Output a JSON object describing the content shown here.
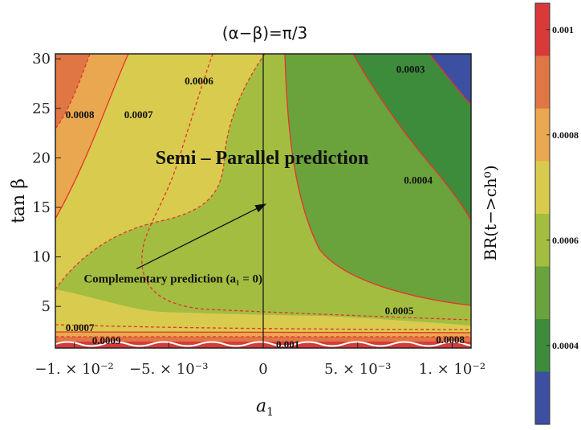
{
  "chart_data": {
    "type": "contour",
    "title": "(α−β)=π/3",
    "xlabel": "a1",
    "ylabel": "tan β",
    "xlim": [
      -0.011,
      0.011
    ],
    "ylim": [
      0.8,
      30.5
    ],
    "x_ticks": [
      {
        "value": -0.01,
        "label": "−1. × 10⁻²"
      },
      {
        "value": -0.005,
        "label": "−5. × 10⁻³"
      },
      {
        "value": 0,
        "label": "0"
      },
      {
        "value": 0.005,
        "label": "5. × 10⁻³"
      },
      {
        "value": 0.01,
        "label": "1. × 10⁻²"
      }
    ],
    "y_ticks": [
      {
        "value": 5,
        "label": "5"
      },
      {
        "value": 10,
        "label": "10"
      },
      {
        "value": 15,
        "label": "15"
      },
      {
        "value": 20,
        "label": "20"
      },
      {
        "value": 25,
        "label": "25"
      },
      {
        "value": 30,
        "label": "30"
      }
    ],
    "colorbar": {
      "title": "BR(t−>ch⁰)",
      "levels": [
        {
          "value": 0.0003,
          "color": "#3c4fa0"
        },
        {
          "value": 0.0004,
          "color": "#3c8c3c"
        },
        {
          "value": 0.0005,
          "color": "#6aa23c"
        },
        {
          "value": 0.0006,
          "color": "#a3bd41"
        },
        {
          "value": 0.0007,
          "color": "#d9cb4e"
        },
        {
          "value": 0.0008,
          "color": "#e9a84f"
        },
        {
          "value": 0.0009,
          "color": "#df7644"
        },
        {
          "value": 0.001,
          "color": "#d83a3a"
        }
      ],
      "tick_labels": [
        {
          "value": 0.0004,
          "label": "0.0004"
        },
        {
          "value": 0.0006,
          "label": "0.0006"
        },
        {
          "value": 0.0008,
          "label": "0.0008"
        },
        {
          "value": 0.001,
          "label": "0.001"
        }
      ]
    },
    "contour_labels": [
      {
        "text": "0.0003",
        "x": 0.0078,
        "y": 28.6
      },
      {
        "text": "0.0004",
        "x": 0.0082,
        "y": 17.4
      },
      {
        "text": "0.0005",
        "x": 0.0072,
        "y": 4.2
      },
      {
        "text": "0.0006",
        "x": -0.0034,
        "y": 27.4
      },
      {
        "text": "0.0007",
        "x": -0.0066,
        "y": 24.0
      },
      {
        "text": "0.0008",
        "x": -0.0097,
        "y": 24.0
      },
      {
        "text": "0.0007",
        "x": -0.0097,
        "y": 2.5
      },
      {
        "text": "0.0009",
        "x": -0.0083,
        "y": 1.2
      },
      {
        "text": "0.001",
        "x": 0.0013,
        "y": 0.8
      },
      {
        "text": "0.0008",
        "x": 0.0099,
        "y": 1.3
      }
    ],
    "annotations": [
      {
        "text": "Semi  – Parallel  prediction",
        "x": -0.0057,
        "y": 19.4,
        "size": "large"
      },
      {
        "text": "Complementary      prediction     (a₁ = 0)",
        "x": -0.0095,
        "y": 7.4,
        "size": "small"
      }
    ],
    "arrow": {
      "from": [
        -0.0067,
        8.8
      ],
      "to": [
        0.0001,
        15.3
      ]
    },
    "vertical_line": 0
  }
}
